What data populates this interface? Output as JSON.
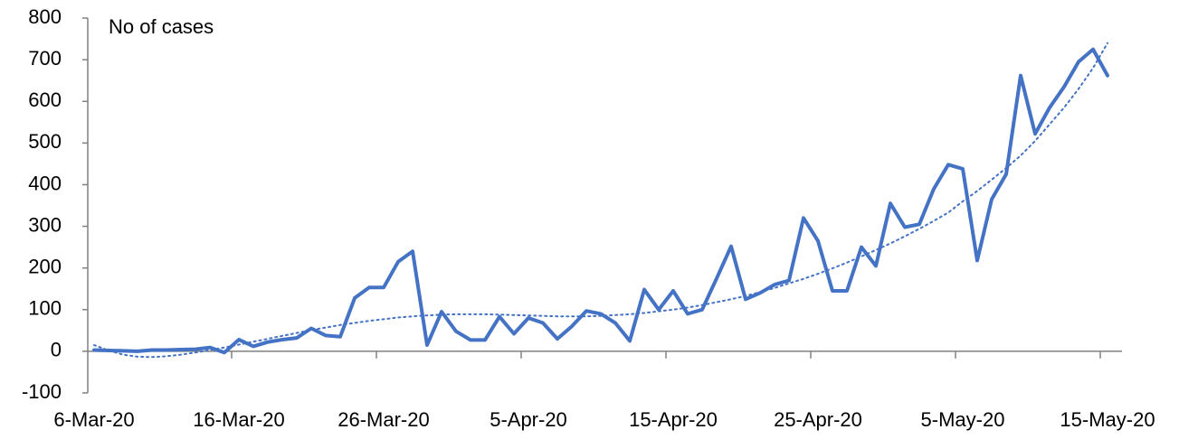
{
  "chart_data": {
    "type": "line",
    "y_label": "No of cases",
    "categories": [
      "6-Mar-20",
      null,
      null,
      null,
      null,
      null,
      null,
      null,
      null,
      null,
      "16-Mar-20",
      null,
      null,
      null,
      null,
      null,
      null,
      null,
      null,
      null,
      "26-Mar-20",
      null,
      null,
      null,
      null,
      null,
      null,
      null,
      null,
      null,
      "5-Apr-20",
      null,
      null,
      null,
      null,
      null,
      null,
      null,
      null,
      null,
      "15-Apr-20",
      null,
      null,
      null,
      null,
      null,
      null,
      null,
      null,
      null,
      "25-Apr-20",
      null,
      null,
      null,
      null,
      null,
      null,
      null,
      null,
      null,
      "5-May-20",
      null,
      null,
      null,
      null,
      null,
      null,
      null,
      null,
      null,
      "15-May-20"
    ],
    "series": [
      {
        "color": "#4472c4",
        "style": "solid",
        "values": [
          3,
          2,
          1,
          0,
          3,
          3,
          4,
          5,
          9,
          -3,
          28,
          12,
          22,
          28,
          32,
          55,
          38,
          35,
          128,
          153,
          153,
          215,
          240,
          15,
          95,
          48,
          27,
          27,
          83,
          42,
          80,
          68,
          30,
          60,
          97,
          90,
          68,
          25,
          148,
          100,
          145,
          90,
          100,
          175,
          252,
          125,
          140,
          160,
          170,
          320,
          265,
          145,
          145,
          250,
          205,
          355,
          298,
          305,
          390,
          448,
          438,
          218,
          365,
          425,
          662,
          522,
          585,
          635,
          695,
          725,
          662
        ]
      },
      {
        "color": "#4472c4",
        "style": "dotted",
        "values": [
          15,
          2,
          -8,
          -13,
          -14,
          -12,
          -8,
          -3,
          3,
          9,
          16,
          23,
          30,
          37,
          44,
          51,
          57,
          63,
          68,
          73,
          77,
          81,
          84,
          86,
          88,
          89,
          89,
          89,
          88,
          87,
          86,
          85,
          84,
          84,
          84,
          85,
          87,
          89,
          92,
          96,
          100,
          105,
          111,
          118,
          125,
          133,
          142,
          152,
          163,
          174,
          186,
          199,
          213,
          228,
          243,
          259,
          276,
          294,
          313,
          333,
          360,
          385,
          412,
          440,
          470,
          505,
          545,
          585,
          630,
          680,
          740
        ]
      }
    ],
    "ylim": [
      -100,
      800
    ],
    "yticks": [
      -100,
      0,
      100,
      200,
      300,
      400,
      500,
      600,
      700,
      800
    ],
    "grid": false
  }
}
